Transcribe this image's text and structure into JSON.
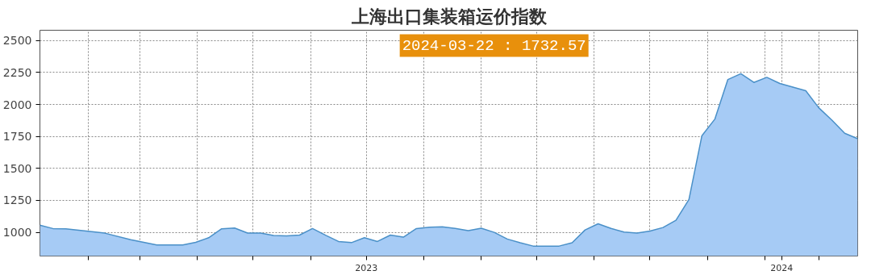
{
  "chart_data": {
    "type": "area",
    "title": "上海出口集装箱运价指数",
    "x": [
      "2023-01-06",
      "2023-01-13",
      "2023-01-20",
      "2023-02-03",
      "2023-02-10",
      "2023-02-24",
      "2023-03-03",
      "2023-03-10",
      "2023-03-24",
      "2023-03-31",
      "2023-04-07",
      "2023-04-14",
      "2023-04-21",
      "2023-04-28",
      "2023-05-05",
      "2023-05-12",
      "2023-05-19",
      "2023-05-26",
      "2023-06-02",
      "2023-06-09",
      "2023-06-16",
      "2023-06-23",
      "2023-06-30",
      "2023-07-07",
      "2023-07-14",
      "2023-07-21",
      "2023-07-28",
      "2023-08-04",
      "2023-08-11",
      "2023-08-18",
      "2023-08-25",
      "2023-09-01",
      "2023-09-08",
      "2023-09-15",
      "2023-09-22",
      "2023-09-29",
      "2023-10-13",
      "2023-10-20",
      "2023-10-27",
      "2023-11-03",
      "2023-11-10",
      "2023-11-17",
      "2023-11-24",
      "2023-12-01",
      "2023-12-08",
      "2023-12-15",
      "2023-12-22",
      "2023-12-29",
      "2024-01-05",
      "2024-01-12",
      "2024-01-19",
      "2024-01-26",
      "2024-02-02",
      "2024-02-09",
      "2024-02-16",
      "2024-02-23",
      "2024-03-01",
      "2024-03-08",
      "2024-03-15",
      "2024-03-22"
    ],
    "series": [
      {
        "color": "#a6cbf5",
        "values": [
          1056,
          1030,
          1028,
          1005,
          994,
          943,
          922,
          901,
          901,
          922,
          958,
          1028,
          1034,
          995,
          995,
          976,
          972,
          979,
          1030,
          978,
          929,
          920,
          958,
          929,
          979,
          963,
          1030,
          1040,
          1043,
          1031,
          1014,
          1033,
          1000,
          948,
          919,
          893,
          893,
          919,
          1019,
          1067,
          1031,
          1002,
          995,
          1010,
          1038,
          1095,
          1257,
          1756,
          1886,
          2195,
          2240,
          2172,
          2212,
          2164,
          2136,
          2107,
          1974,
          1879,
          1775,
          1732.57
        ]
      }
    ],
    "xlim": [
      "2023-01-06",
      "2024-03-22"
    ],
    "xticks": [
      {
        "value": "2023-02-01",
        "label": null
      },
      {
        "value": "2023-03-01",
        "label": null
      },
      {
        "value": "2023-04-01",
        "label": null
      },
      {
        "value": "2023-05-01",
        "label": null
      },
      {
        "value": "2023-06-01",
        "label": null
      },
      {
        "value": "2023-07-01",
        "label": "2023"
      },
      {
        "value": "2023-08-01",
        "label": null
      },
      {
        "value": "2023-09-01",
        "label": null
      },
      {
        "value": "2023-10-01",
        "label": null
      },
      {
        "value": "2023-11-01",
        "label": null
      },
      {
        "value": "2023-12-01",
        "label": null
      },
      {
        "value": "2024-01-01",
        "label": null
      },
      {
        "value": "2024-02-01",
        "label": null
      },
      {
        "value": "2024-02-10",
        "label": "2024"
      },
      {
        "value": "2024-03-01",
        "label": null
      }
    ],
    "ylim": [
      815,
      2580
    ],
    "yticks": [
      1000,
      1250,
      1500,
      1750,
      2000,
      2250,
      2500
    ],
    "grid": true,
    "annotations": [
      "2024-03-22 : 1732.57"
    ]
  }
}
